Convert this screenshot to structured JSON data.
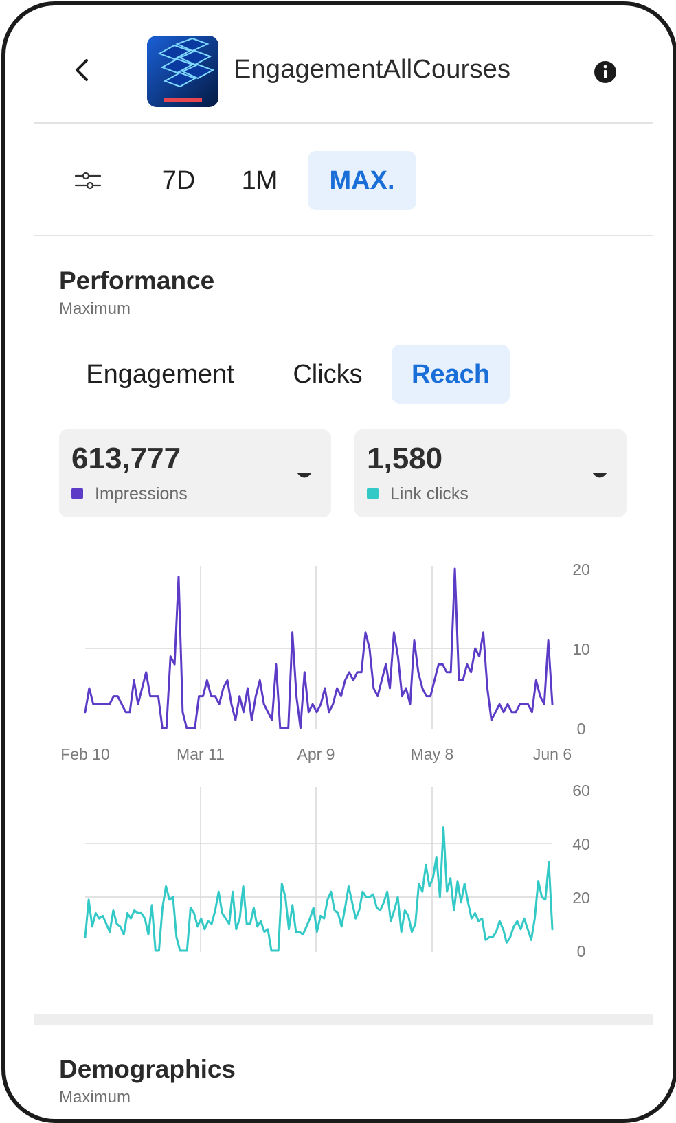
{
  "header": {
    "title": "EngagementAllCourses"
  },
  "range_tabs": [
    {
      "label": "7D",
      "active": false
    },
    {
      "label": "1M",
      "active": false
    },
    {
      "label": "MAX.",
      "active": true
    }
  ],
  "performance": {
    "title": "Performance",
    "subtitle": "Maximum",
    "tabs": [
      {
        "label": "Engagement",
        "active": false
      },
      {
        "label": "Clicks",
        "active": false
      },
      {
        "label": "Reach",
        "active": true
      }
    ],
    "cards": [
      {
        "value": "613,777",
        "label": "Impressions",
        "color": "#5c3cc6"
      },
      {
        "value": "1,580",
        "label": "Link clicks",
        "color": "#33c9c6"
      }
    ]
  },
  "demographics": {
    "title": "Demographics",
    "subtitle": "Maximum"
  },
  "colors": {
    "accent": "#1a6ed8",
    "accent_bg": "#e7f1fd",
    "impressions": "#5c3cc6",
    "link_clicks": "#33c9c6"
  },
  "icons": [
    "chevron-left-icon",
    "info-icon",
    "filter-sliders-icon",
    "caret-down-icon"
  ],
  "chart_data": [
    {
      "type": "line",
      "name": "Impressions",
      "color": "#5c3cc6",
      "x_ticks": [
        "Feb 10",
        "Mar 11",
        "Apr 9",
        "May 8",
        "Jun 6"
      ],
      "y_ticks": [
        "0",
        "10",
        "20"
      ],
      "ylim": [
        0,
        20
      ],
      "grid": true,
      "values": [
        2,
        5,
        3,
        3,
        3,
        3,
        3,
        4,
        4,
        3,
        2,
        2,
        6,
        3,
        5,
        7,
        4,
        4,
        4,
        0,
        0,
        9,
        8,
        19,
        2,
        0,
        0,
        0,
        4,
        4,
        6,
        4,
        4,
        3,
        5,
        6,
        3,
        1,
        4,
        2,
        5,
        1,
        4,
        6,
        3,
        2,
        1,
        8,
        0,
        0,
        0,
        12,
        4,
        0,
        7,
        2,
        3,
        2,
        3,
        5,
        2,
        3,
        5,
        4,
        6,
        7,
        6,
        7,
        7,
        12,
        10,
        5,
        4,
        6,
        8,
        5,
        12,
        9,
        4,
        5,
        3,
        11,
        7,
        5,
        4,
        4,
        6,
        8,
        8,
        7,
        7,
        20,
        6,
        6,
        8,
        7,
        10,
        9,
        12,
        5,
        1,
        2,
        3,
        2,
        3,
        2,
        2,
        3,
        3,
        3,
        2,
        6,
        4,
        3,
        11,
        3
      ]
    },
    {
      "type": "line",
      "name": "Link clicks",
      "color": "#33c9c6",
      "x_ticks": [
        "Feb 10",
        "Mar 11",
        "Apr 9",
        "May 8",
        "Jun 6"
      ],
      "y_ticks": [
        "0",
        "20",
        "40",
        "60"
      ],
      "ylim": [
        0,
        60
      ],
      "grid": true,
      "values": [
        5,
        19,
        9,
        14,
        12,
        13,
        10,
        7,
        15,
        10,
        9,
        6,
        14,
        12,
        15,
        14,
        14,
        12,
        6,
        17,
        0,
        0,
        16,
        24,
        19,
        20,
        5,
        0,
        0,
        0,
        16,
        14,
        9,
        12,
        8,
        11,
        10,
        15,
        22,
        14,
        12,
        10,
        22,
        8,
        12,
        24,
        10,
        10,
        16,
        9,
        11,
        7,
        8,
        0,
        0,
        0,
        25,
        20,
        8,
        17,
        7,
        7,
        6,
        9,
        12,
        16,
        7,
        13,
        12,
        19,
        22,
        15,
        14,
        9,
        16,
        24,
        18,
        12,
        15,
        22,
        20,
        20,
        21,
        16,
        15,
        18,
        22,
        11,
        15,
        20,
        7,
        15,
        13,
        7,
        10,
        25,
        22,
        32,
        24,
        27,
        35,
        20,
        46,
        22,
        27,
        15,
        26,
        18,
        25,
        18,
        12,
        14,
        11,
        12,
        4,
        5,
        5,
        7,
        11,
        8,
        3,
        5,
        9,
        11,
        8,
        12,
        8,
        4,
        12,
        26,
        20,
        19,
        33,
        8
      ]
    }
  ]
}
